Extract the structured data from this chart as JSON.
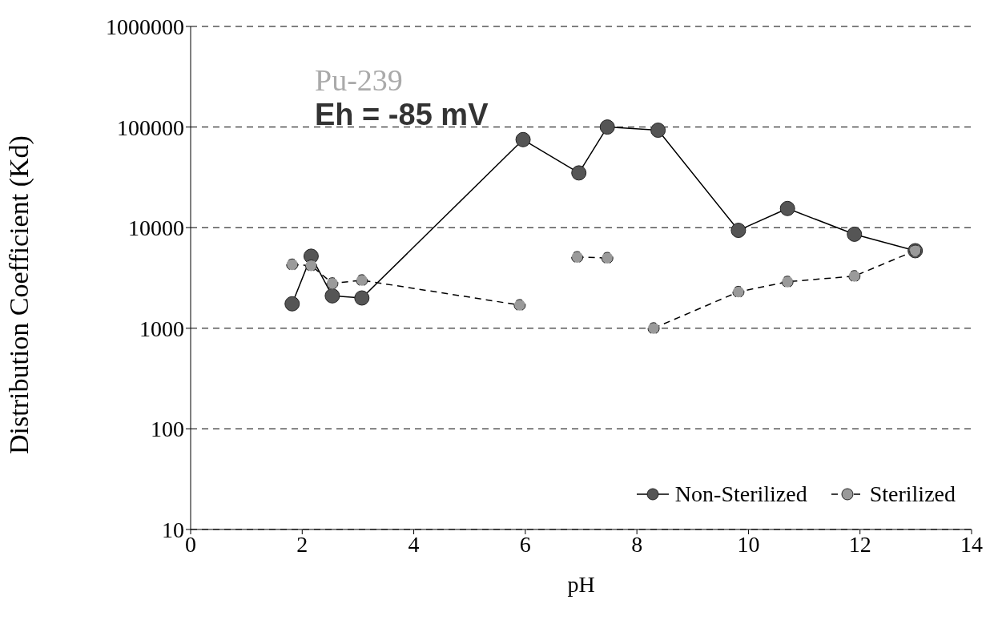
{
  "chart_data": {
    "type": "line",
    "xlabel": "pH",
    "ylabel": "Distribution Coefficient (Kd)",
    "annotations": [
      "Pu-239",
      "Eh = -85 mV"
    ],
    "log": "y",
    "grid": "y",
    "legend": "bottom right",
    "marker": "circle",
    "xlim": [
      0,
      14
    ],
    "xticks": [
      0,
      2,
      4,
      6,
      8,
      10,
      12,
      14
    ],
    "ylim": [
      10,
      1000000
    ],
    "yticks": [
      10,
      100,
      1000,
      10000,
      100000,
      1000000
    ],
    "series": [
      {
        "name": "Non-Sterilized",
        "color": "#555555",
        "line_style": "solid",
        "x": [
          1.82,
          2.16,
          2.54,
          3.07,
          5.96,
          6.96,
          7.47,
          8.38,
          9.82,
          10.7,
          11.9,
          12.99
        ],
        "values": [
          1750,
          5200,
          2100,
          2000,
          75000,
          35000,
          100000,
          93000,
          9400,
          15500,
          8600,
          5900
        ]
      },
      {
        "name": "Sterilized",
        "color": "#9a9a9a",
        "line_style": "dashed",
        "x": [
          1.82,
          2.16,
          2.54,
          3.07,
          5.9,
          6.4,
          6.93,
          7.47,
          7.9,
          8.3,
          9.82,
          10.7,
          11.9,
          12.99
        ],
        "values": [
          4300,
          4200,
          2800,
          3000,
          1700,
          null,
          5100,
          5000,
          null,
          1000,
          2300,
          2900,
          3300,
          5900
        ]
      }
    ]
  }
}
